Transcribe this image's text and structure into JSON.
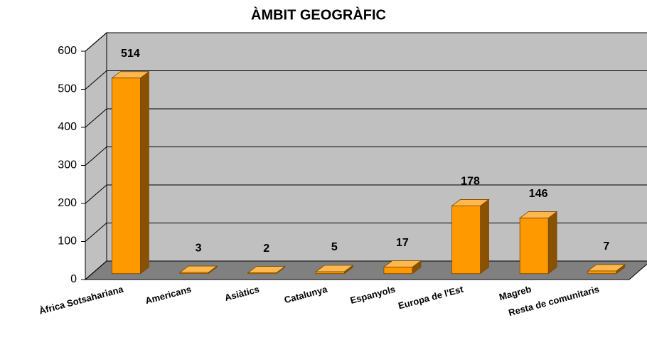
{
  "chart_data": {
    "type": "bar",
    "title": "ÀMBIT GEOGRÀFIC",
    "categories": [
      "Àfrica Sotsahariana",
      "Americans",
      "Asiàtics",
      "Catalunya",
      "Espanyols",
      "Europa de l'Est",
      "Magreb",
      "Resta de comunitaris"
    ],
    "values": [
      514,
      3,
      2,
      5,
      17,
      178,
      146,
      7
    ],
    "color": "#ff9900",
    "ylim": [
      0,
      600
    ],
    "yticks": [
      0,
      100,
      200,
      300,
      400,
      500,
      600
    ],
    "grid": true
  }
}
